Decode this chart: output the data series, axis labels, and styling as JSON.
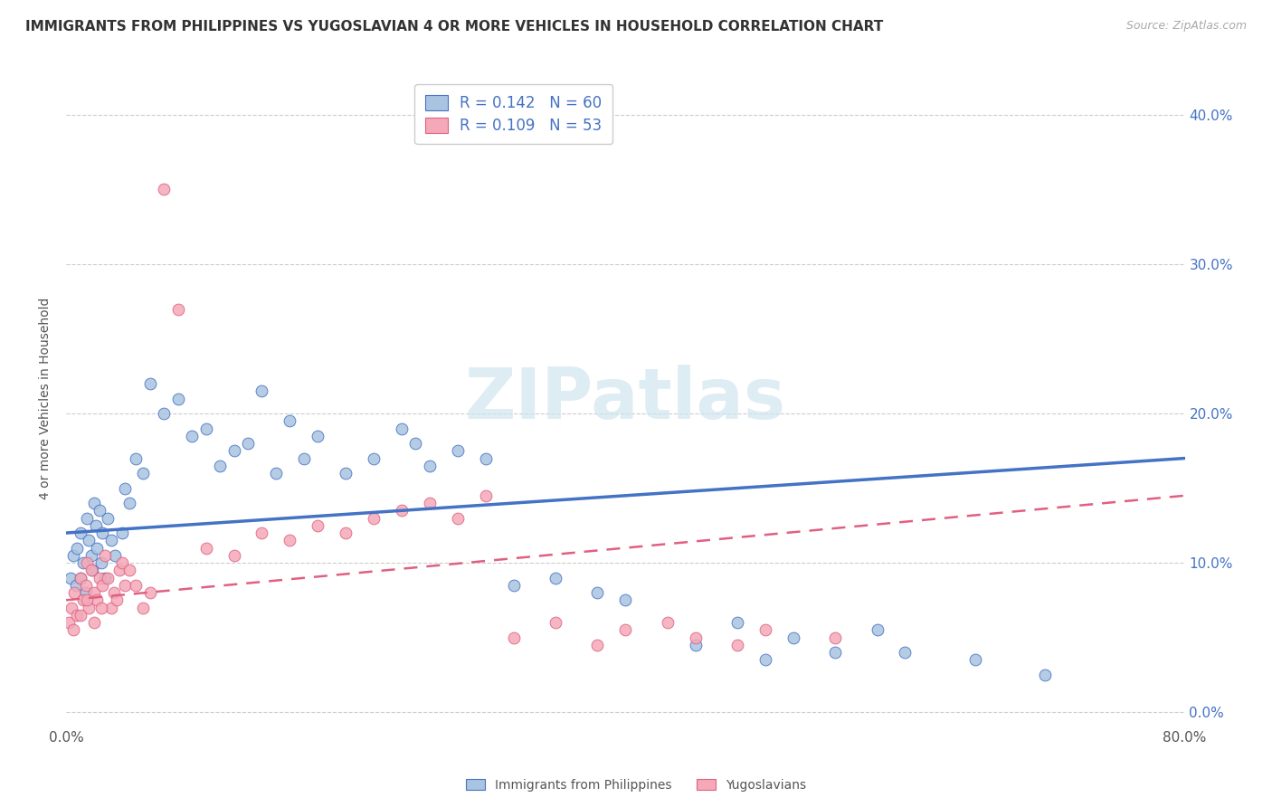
{
  "title": "IMMIGRANTS FROM PHILIPPINES VS YUGOSLAVIAN 4 OR MORE VEHICLES IN HOUSEHOLD CORRELATION CHART",
  "source": "Source: ZipAtlas.com",
  "ylabel": "4 or more Vehicles in Household",
  "ytick_vals": [
    0.0,
    10.0,
    20.0,
    30.0,
    40.0
  ],
  "xlim": [
    0.0,
    80.0
  ],
  "ylim": [
    -1.0,
    43.0
  ],
  "legend_labels": [
    "Immigrants from Philippines",
    "Yugoslavians"
  ],
  "legend_r": [
    "R = 0.142",
    "R = 0.109"
  ],
  "legend_n": [
    "N = 60",
    "N = 53"
  ],
  "philippines_color": "#a8c4e0",
  "yugoslavians_color": "#f4a8b8",
  "philippines_line_color": "#4472c4",
  "yugoslavians_line_color": "#e06080",
  "title_fontsize": 11,
  "source_fontsize": 9,
  "background_color": "#ffffff",
  "philippines_scatter_x": [
    0.3,
    0.5,
    0.7,
    0.8,
    1.0,
    1.0,
    1.2,
    1.4,
    1.5,
    1.6,
    1.8,
    1.9,
    2.0,
    2.1,
    2.2,
    2.4,
    2.5,
    2.6,
    2.8,
    3.0,
    3.2,
    3.5,
    4.0,
    4.2,
    4.5,
    5.0,
    5.5,
    6.0,
    7.0,
    8.0,
    9.0,
    10.0,
    11.0,
    12.0,
    13.0,
    14.0,
    15.0,
    16.0,
    17.0,
    18.0,
    20.0,
    22.0,
    24.0,
    25.0,
    26.0,
    28.0,
    30.0,
    32.0,
    35.0,
    38.0,
    40.0,
    45.0,
    48.0,
    50.0,
    52.0,
    55.0,
    58.0,
    60.0,
    65.0,
    70.0
  ],
  "philippines_scatter_y": [
    9.0,
    10.5,
    8.5,
    11.0,
    12.0,
    9.0,
    10.0,
    8.0,
    13.0,
    11.5,
    10.5,
    9.5,
    14.0,
    12.5,
    11.0,
    13.5,
    10.0,
    12.0,
    9.0,
    13.0,
    11.5,
    10.5,
    12.0,
    15.0,
    14.0,
    17.0,
    16.0,
    22.0,
    20.0,
    21.0,
    18.5,
    19.0,
    16.5,
    17.5,
    18.0,
    21.5,
    16.0,
    19.5,
    17.0,
    18.5,
    16.0,
    17.0,
    19.0,
    18.0,
    16.5,
    17.5,
    17.0,
    8.5,
    9.0,
    8.0,
    7.5,
    4.5,
    6.0,
    3.5,
    5.0,
    4.0,
    5.5,
    4.0,
    3.5,
    2.5
  ],
  "yugoslavians_scatter_x": [
    0.2,
    0.4,
    0.5,
    0.6,
    0.8,
    1.0,
    1.2,
    1.4,
    1.5,
    1.6,
    1.8,
    2.0,
    2.2,
    2.4,
    2.6,
    2.8,
    3.0,
    3.2,
    3.4,
    3.6,
    3.8,
    4.0,
    4.2,
    4.5,
    5.0,
    5.5,
    6.0,
    7.0,
    8.0,
    10.0,
    12.0,
    14.0,
    16.0,
    18.0,
    20.0,
    22.0,
    24.0,
    26.0,
    28.0,
    30.0,
    32.0,
    35.0,
    38.0,
    40.0,
    43.0,
    45.0,
    48.0,
    50.0,
    55.0,
    1.0,
    1.5,
    2.0,
    2.5
  ],
  "yugoslavians_scatter_y": [
    6.0,
    7.0,
    5.5,
    8.0,
    6.5,
    9.0,
    7.5,
    8.5,
    10.0,
    7.0,
    9.5,
    8.0,
    7.5,
    9.0,
    8.5,
    10.5,
    9.0,
    7.0,
    8.0,
    7.5,
    9.5,
    10.0,
    8.5,
    9.5,
    8.5,
    7.0,
    8.0,
    35.0,
    27.0,
    11.0,
    10.5,
    12.0,
    11.5,
    12.5,
    12.0,
    13.0,
    13.5,
    14.0,
    13.0,
    14.5,
    5.0,
    6.0,
    4.5,
    5.5,
    6.0,
    5.0,
    4.5,
    5.5,
    5.0,
    6.5,
    7.5,
    6.0,
    7.0
  ],
  "grid_color": "#cccccc",
  "tick_label_color": "#4472c4",
  "ph_line_start_y": 12.0,
  "ph_line_end_y": 17.0,
  "yu_line_start_y": 7.5,
  "yu_line_end_y": 14.5
}
